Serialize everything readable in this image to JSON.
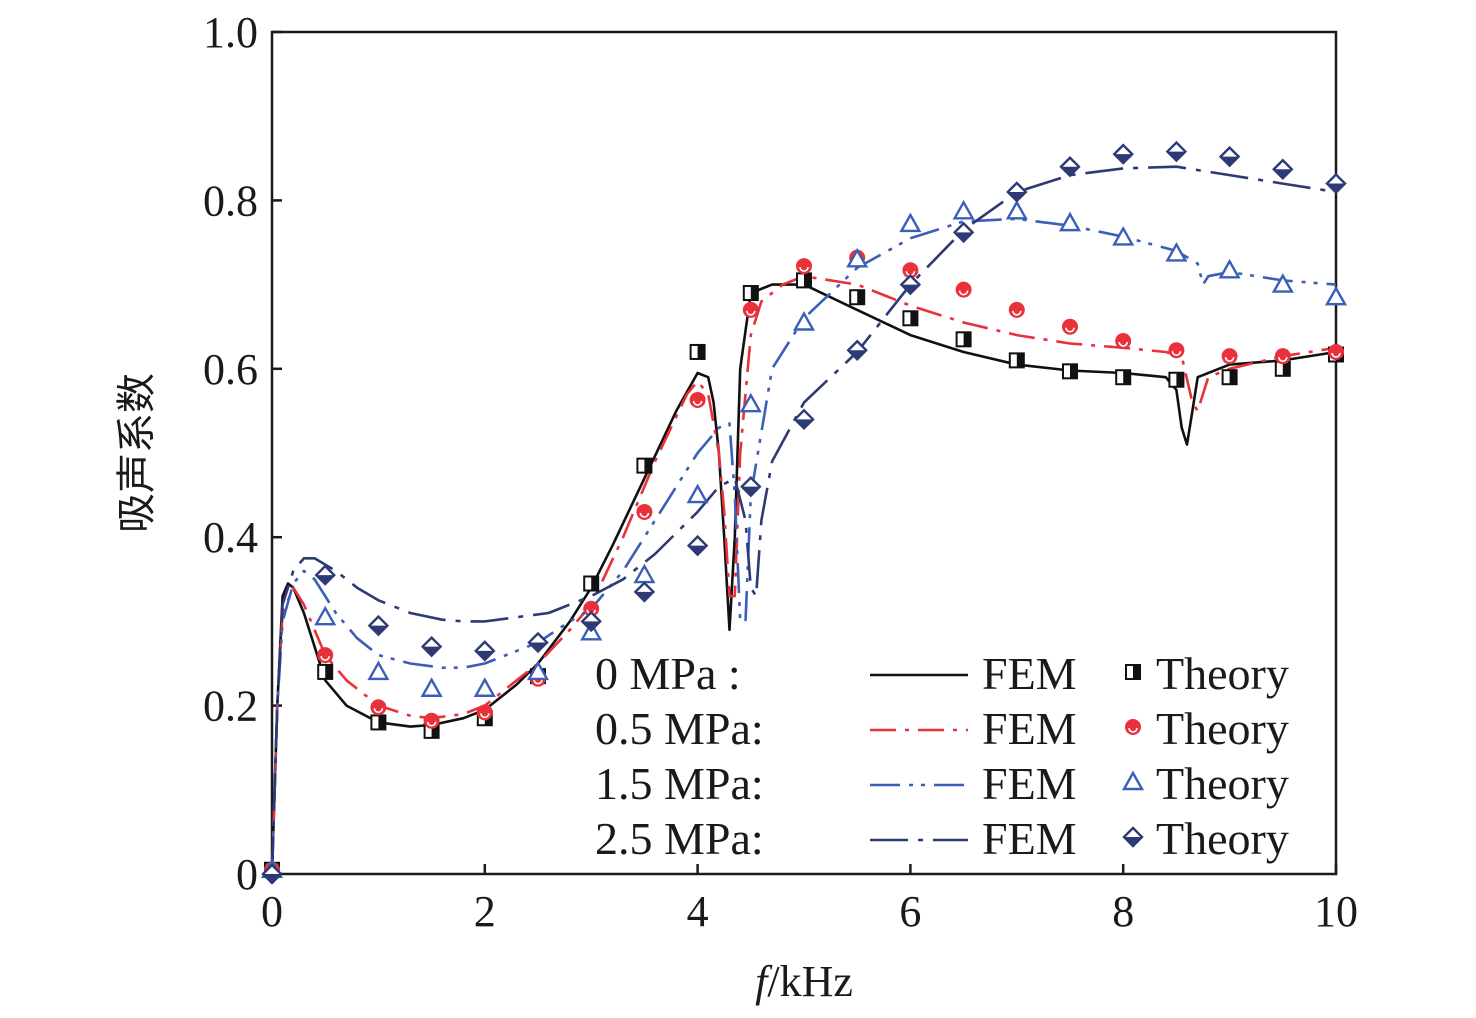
{
  "chart_data": {
    "type": "line",
    "title": "",
    "xlabel_italic": "f",
    "xlabel_rest": "/kHz",
    "ylabel": "吸声系数",
    "xlim": [
      0,
      10
    ],
    "ylim": [
      0,
      1.0
    ],
    "x_ticks": [
      0,
      2,
      4,
      6,
      8,
      10
    ],
    "x_tick_labels": [
      "0",
      "2",
      "4",
      "6",
      "8",
      "10"
    ],
    "y_ticks": [
      0,
      0.2,
      0.4,
      0.6,
      0.8,
      1.0
    ],
    "y_tick_labels": [
      "0",
      "0.2",
      "0.4",
      "0.6",
      "0.8",
      "1.0"
    ],
    "grid": false,
    "legend_position": "lower-right",
    "fem_label": "FEM",
    "theory_label": "Theory",
    "series": [
      {
        "name": "0 MPa",
        "legend_label": "0 MPa :",
        "color": "#111111",
        "line_dash": "solid",
        "marker": "half-filled-square",
        "fem": {
          "x": [
            0,
            0.05,
            0.1,
            0.15,
            0.2,
            0.3,
            0.4,
            0.5,
            0.7,
            1.0,
            1.3,
            1.5,
            1.8,
            2.0,
            2.3,
            2.5,
            2.8,
            3.0,
            3.2,
            3.5,
            3.8,
            4.0,
            4.1,
            4.15,
            4.2,
            4.25,
            4.3,
            4.35,
            4.4,
            4.5,
            4.7,
            5.0,
            5.5,
            6.0,
            6.5,
            7.0,
            7.5,
            8.0,
            8.4,
            8.5,
            8.55,
            8.6,
            8.65,
            8.7,
            9.0,
            9.5,
            10.0
          ],
          "y": [
            0.0,
            0.2,
            0.33,
            0.345,
            0.34,
            0.31,
            0.27,
            0.23,
            0.2,
            0.18,
            0.175,
            0.177,
            0.185,
            0.195,
            0.225,
            0.25,
            0.3,
            0.34,
            0.39,
            0.47,
            0.55,
            0.595,
            0.59,
            0.56,
            0.5,
            0.4,
            0.29,
            0.4,
            0.6,
            0.69,
            0.7,
            0.7,
            0.67,
            0.64,
            0.62,
            0.605,
            0.598,
            0.595,
            0.59,
            0.575,
            0.53,
            0.51,
            0.55,
            0.59,
            0.605,
            0.61,
            0.62
          ]
        },
        "theory": {
          "x": [
            0,
            0.5,
            1.0,
            1.5,
            2.0,
            2.5,
            3.0,
            3.5,
            4.0,
            4.5,
            5.0,
            5.5,
            6.0,
            6.5,
            7.0,
            7.5,
            8.0,
            8.5,
            9.0,
            9.5,
            10.0
          ],
          "y": [
            0.005,
            0.24,
            0.18,
            0.17,
            0.185,
            0.235,
            0.345,
            0.485,
            0.62,
            0.69,
            0.705,
            0.685,
            0.66,
            0.635,
            0.61,
            0.597,
            0.59,
            0.587,
            0.59,
            0.6,
            0.617
          ]
        }
      },
      {
        "name": "0.5 MPa",
        "legend_label": "0.5 MPa:",
        "color": "#e8313a",
        "line_dash": "dash-dot",
        "marker": "circle",
        "fem": {
          "x": [
            0,
            0.05,
            0.1,
            0.2,
            0.3,
            0.5,
            0.7,
            1.0,
            1.3,
            1.5,
            1.8,
            2.0,
            2.3,
            2.5,
            2.8,
            3.0,
            3.3,
            3.6,
            3.9,
            4.0,
            4.1,
            4.2,
            4.25,
            4.3,
            4.35,
            4.4,
            4.5,
            4.6,
            4.8,
            5.0,
            5.5,
            6.0,
            6.5,
            7.0,
            7.5,
            8.0,
            8.4,
            8.55,
            8.65,
            8.7,
            8.8,
            9.0,
            9.5,
            10.0
          ],
          "y": [
            0.0,
            0.2,
            0.31,
            0.34,
            0.32,
            0.26,
            0.23,
            0.2,
            0.188,
            0.185,
            0.19,
            0.2,
            0.23,
            0.25,
            0.29,
            0.32,
            0.4,
            0.49,
            0.57,
            0.585,
            0.57,
            0.5,
            0.43,
            0.33,
            0.33,
            0.5,
            0.64,
            0.68,
            0.7,
            0.71,
            0.7,
            0.675,
            0.655,
            0.64,
            0.63,
            0.625,
            0.62,
            0.615,
            0.56,
            0.55,
            0.59,
            0.6,
            0.615,
            0.625
          ]
        },
        "theory": {
          "x": [
            0,
            0.5,
            1.0,
            1.5,
            2.0,
            2.5,
            3.0,
            3.5,
            4.0,
            4.5,
            5.0,
            5.5,
            6.0,
            6.5,
            7.0,
            7.5,
            8.0,
            8.5,
            9.0,
            9.5,
            10.0
          ],
          "y": [
            0.005,
            0.26,
            0.198,
            0.182,
            0.192,
            0.232,
            0.315,
            0.43,
            0.563,
            0.67,
            0.722,
            0.732,
            0.717,
            0.694,
            0.67,
            0.65,
            0.633,
            0.622,
            0.615,
            0.615,
            0.62
          ]
        }
      },
      {
        "name": "1.5 MPa",
        "legend_label": "1.5 MPa:",
        "color": "#3b5fb8",
        "line_dash": "long-dash-dot-dot",
        "marker": "triangle",
        "fem": {
          "x": [
            0,
            0.05,
            0.1,
            0.2,
            0.3,
            0.4,
            0.6,
            0.8,
            1.0,
            1.3,
            1.6,
            1.8,
            2.0,
            2.3,
            2.5,
            2.8,
            3.0,
            3.3,
            3.6,
            4.0,
            4.2,
            4.3,
            4.35,
            4.4,
            4.45,
            4.5,
            4.7,
            5.0,
            5.5,
            6.0,
            6.5,
            7.0,
            7.5,
            8.0,
            8.5,
            8.7,
            8.75,
            8.8,
            9.0,
            9.5,
            10.0
          ],
          "y": [
            0.0,
            0.2,
            0.3,
            0.345,
            0.36,
            0.35,
            0.31,
            0.28,
            0.26,
            0.25,
            0.245,
            0.245,
            0.25,
            0.265,
            0.275,
            0.3,
            0.315,
            0.36,
            0.42,
            0.5,
            0.53,
            0.535,
            0.45,
            0.3,
            0.3,
            0.45,
            0.6,
            0.66,
            0.72,
            0.755,
            0.775,
            0.778,
            0.77,
            0.757,
            0.74,
            0.725,
            0.7,
            0.71,
            0.715,
            0.705,
            0.7
          ]
        },
        "theory": {
          "x": [
            0,
            0.5,
            1.0,
            1.5,
            2.0,
            2.5,
            3.0,
            3.5,
            4.0,
            4.5,
            5.0,
            5.5,
            6.0,
            6.5,
            7.0,
            7.5,
            8.0,
            8.5,
            9.0,
            9.5,
            10.0
          ],
          "y": [
            0.005,
            0.305,
            0.24,
            0.22,
            0.22,
            0.24,
            0.287,
            0.355,
            0.45,
            0.558,
            0.655,
            0.73,
            0.772,
            0.787,
            0.787,
            0.773,
            0.756,
            0.737,
            0.717,
            0.7,
            0.685
          ]
        }
      },
      {
        "name": "2.5 MPa",
        "legend_label": "2.5 MPa:",
        "color": "#2d3a75",
        "line_dash": "long-dash-dot",
        "marker": "diamond",
        "fem": {
          "x": [
            0,
            0.05,
            0.1,
            0.2,
            0.3,
            0.4,
            0.6,
            0.8,
            1.0,
            1.3,
            1.6,
            1.8,
            2.0,
            2.3,
            2.6,
            3.0,
            3.3,
            3.6,
            4.0,
            4.2,
            4.35,
            4.45,
            4.5,
            4.55,
            4.6,
            4.7,
            5.0,
            5.5,
            6.0,
            6.5,
            7.0,
            7.5,
            8.0,
            8.5,
            9.0,
            9.5,
            10.0
          ],
          "y": [
            0.0,
            0.2,
            0.32,
            0.36,
            0.375,
            0.375,
            0.36,
            0.34,
            0.325,
            0.31,
            0.302,
            0.3,
            0.3,
            0.305,
            0.31,
            0.33,
            0.35,
            0.38,
            0.43,
            0.46,
            0.47,
            0.42,
            0.34,
            0.33,
            0.42,
            0.49,
            0.56,
            0.62,
            0.7,
            0.765,
            0.81,
            0.83,
            0.838,
            0.84,
            0.83,
            0.82,
            0.81
          ]
        },
        "theory": {
          "x": [
            0,
            0.5,
            1.0,
            1.5,
            2.0,
            2.5,
            3.0,
            3.5,
            4.0,
            4.5,
            5.0,
            5.5,
            6.0,
            6.5,
            7.0,
            7.5,
            8.0,
            8.5,
            9.0,
            9.5,
            10.0
          ],
          "y": [
            0.0,
            0.355,
            0.295,
            0.27,
            0.265,
            0.275,
            0.3,
            0.335,
            0.39,
            0.46,
            0.54,
            0.622,
            0.7,
            0.762,
            0.81,
            0.84,
            0.855,
            0.858,
            0.852,
            0.837,
            0.82
          ]
        }
      }
    ]
  }
}
